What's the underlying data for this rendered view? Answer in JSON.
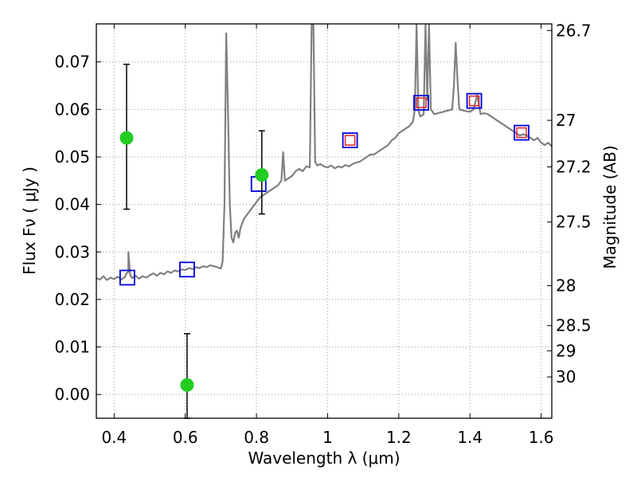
{
  "chart_data": {
    "type": "scatter",
    "xlabel": "Wavelength  λ (μm)",
    "ylabel": "Flux  Fν  ( μJy )",
    "ylabel_right": "Magnitude (AB)",
    "xlim": [
      0.35,
      1.63
    ],
    "ylim": [
      -0.005,
      0.078
    ],
    "grid": true,
    "x_ticks": [
      {
        "value": 0.4,
        "label": "0.4"
      },
      {
        "value": 0.6,
        "label": "0.6"
      },
      {
        "value": 0.8,
        "label": "0.8"
      },
      {
        "value": 1.0,
        "label": "1"
      },
      {
        "value": 1.2,
        "label": "1.2"
      },
      {
        "value": 1.4,
        "label": "1.4"
      },
      {
        "value": 1.6,
        "label": "1.6"
      }
    ],
    "y_ticks": [
      {
        "value": 0.0,
        "label": "0.00"
      },
      {
        "value": 0.01,
        "label": "0.01"
      },
      {
        "value": 0.02,
        "label": "0.02"
      },
      {
        "value": 0.03,
        "label": "0.03"
      },
      {
        "value": 0.04,
        "label": "0.04"
      },
      {
        "value": 0.05,
        "label": "0.05"
      },
      {
        "value": 0.06,
        "label": "0.06"
      },
      {
        "value": 0.07,
        "label": "0.07"
      }
    ],
    "right_ticks": [
      {
        "flux": 0.0766,
        "label": "26.7"
      },
      {
        "flux": 0.0577,
        "label": "27"
      },
      {
        "flux": 0.0479,
        "label": "27.2"
      },
      {
        "flux": 0.0363,
        "label": "27.5"
      },
      {
        "flux": 0.0229,
        "label": "28"
      },
      {
        "flux": 0.0145,
        "label": "28.5"
      },
      {
        "flux": 0.0092,
        "label": "29"
      },
      {
        "flux": 0.0037,
        "label": "30"
      }
    ],
    "colors": {
      "spectrum": "#808080",
      "detections": "#22cc22",
      "model_photometry": "#0000dd",
      "observed_boxes": "#dd2222",
      "errorbars": "#000000",
      "grid": "#999999"
    },
    "series": [
      {
        "kind": "spectrum",
        "points": [
          [
            0.35,
            0.0245
          ],
          [
            0.36,
            0.0242
          ],
          [
            0.37,
            0.0249
          ],
          [
            0.38,
            0.0241
          ],
          [
            0.39,
            0.0246
          ],
          [
            0.4,
            0.0243
          ],
          [
            0.41,
            0.0248
          ],
          [
            0.42,
            0.0242
          ],
          [
            0.43,
            0.0247
          ],
          [
            0.435,
            0.0255
          ],
          [
            0.44,
            0.0258
          ],
          [
            0.44,
            0.03
          ],
          [
            0.445,
            0.0252
          ],
          [
            0.45,
            0.0245
          ],
          [
            0.46,
            0.025
          ],
          [
            0.47,
            0.0244
          ],
          [
            0.48,
            0.0249
          ],
          [
            0.49,
            0.0246
          ],
          [
            0.5,
            0.0251
          ],
          [
            0.51,
            0.0255
          ],
          [
            0.52,
            0.025
          ],
          [
            0.53,
            0.0256
          ],
          [
            0.54,
            0.0253
          ],
          [
            0.55,
            0.0259
          ],
          [
            0.56,
            0.0256
          ],
          [
            0.57,
            0.0261
          ],
          [
            0.58,
            0.0259
          ],
          [
            0.59,
            0.0263
          ],
          [
            0.6,
            0.0262
          ],
          [
            0.61,
            0.0266
          ],
          [
            0.62,
            0.0264
          ],
          [
            0.63,
            0.0268
          ],
          [
            0.64,
            0.0266
          ],
          [
            0.65,
            0.027
          ],
          [
            0.66,
            0.0268
          ],
          [
            0.67,
            0.0272
          ],
          [
            0.68,
            0.027
          ],
          [
            0.69,
            0.0268
          ],
          [
            0.7,
            0.0265
          ],
          [
            0.705,
            0.028
          ],
          [
            0.71,
            0.04
          ],
          [
            0.715,
            0.076
          ],
          [
            0.72,
            0.06
          ],
          [
            0.725,
            0.04
          ],
          [
            0.73,
            0.033
          ],
          [
            0.735,
            0.032
          ],
          [
            0.74,
            0.034
          ],
          [
            0.745,
            0.0345
          ],
          [
            0.75,
            0.033
          ],
          [
            0.755,
            0.035
          ],
          [
            0.76,
            0.036
          ],
          [
            0.765,
            0.037
          ],
          [
            0.77,
            0.0375
          ],
          [
            0.78,
            0.0385
          ],
          [
            0.79,
            0.0395
          ],
          [
            0.8,
            0.0405
          ],
          [
            0.81,
            0.0415
          ],
          [
            0.82,
            0.042
          ],
          [
            0.83,
            0.0425
          ],
          [
            0.84,
            0.043
          ],
          [
            0.85,
            0.0435
          ],
          [
            0.86,
            0.044
          ],
          [
            0.87,
            0.045
          ],
          [
            0.875,
            0.051
          ],
          [
            0.88,
            0.045
          ],
          [
            0.89,
            0.0455
          ],
          [
            0.9,
            0.046
          ],
          [
            0.91,
            0.047
          ],
          [
            0.92,
            0.0475
          ],
          [
            0.93,
            0.047
          ],
          [
            0.94,
            0.048
          ],
          [
            0.95,
            0.0478
          ],
          [
            0.955,
            0.078
          ],
          [
            0.96,
            0.078
          ],
          [
            0.965,
            0.049
          ],
          [
            0.97,
            0.0482
          ],
          [
            0.98,
            0.0485
          ],
          [
            0.99,
            0.048
          ],
          [
            1.0,
            0.0478
          ],
          [
            1.01,
            0.0482
          ],
          [
            1.02,
            0.0476
          ],
          [
            1.03,
            0.048
          ],
          [
            1.04,
            0.0478
          ],
          [
            1.05,
            0.0483
          ],
          [
            1.06,
            0.048
          ],
          [
            1.07,
            0.0485
          ],
          [
            1.08,
            0.0488
          ],
          [
            1.09,
            0.049
          ],
          [
            1.1,
            0.0495
          ],
          [
            1.11,
            0.05
          ],
          [
            1.12,
            0.0505
          ],
          [
            1.13,
            0.0505
          ],
          [
            1.14,
            0.051
          ],
          [
            1.15,
            0.0515
          ],
          [
            1.16,
            0.052
          ],
          [
            1.17,
            0.0525
          ],
          [
            1.18,
            0.0535
          ],
          [
            1.19,
            0.054
          ],
          [
            1.2,
            0.055
          ],
          [
            1.21,
            0.0555
          ],
          [
            1.22,
            0.056
          ],
          [
            1.23,
            0.0565
          ],
          [
            1.24,
            0.0575
          ],
          [
            1.245,
            0.06
          ],
          [
            1.25,
            0.078
          ],
          [
            1.255,
            0.06
          ],
          [
            1.26,
            0.0585
          ],
          [
            1.27,
            0.059
          ],
          [
            1.275,
            0.078
          ],
          [
            1.28,
            0.062
          ],
          [
            1.285,
            0.078
          ],
          [
            1.29,
            0.06
          ],
          [
            1.3,
            0.059
          ],
          [
            1.31,
            0.0592
          ],
          [
            1.32,
            0.0594
          ],
          [
            1.33,
            0.0596
          ],
          [
            1.34,
            0.0598
          ],
          [
            1.35,
            0.06
          ],
          [
            1.355,
            0.065
          ],
          [
            1.36,
            0.074
          ],
          [
            1.365,
            0.066
          ],
          [
            1.37,
            0.06
          ],
          [
            1.38,
            0.0598
          ],
          [
            1.39,
            0.0596
          ],
          [
            1.4,
            0.0595
          ],
          [
            1.41,
            0.06
          ],
          [
            1.42,
            0.063
          ],
          [
            1.43,
            0.059
          ],
          [
            1.44,
            0.0592
          ],
          [
            1.45,
            0.059
          ],
          [
            1.46,
            0.0585
          ],
          [
            1.47,
            0.058
          ],
          [
            1.48,
            0.0575
          ],
          [
            1.49,
            0.057
          ],
          [
            1.5,
            0.0565
          ],
          [
            1.51,
            0.056
          ],
          [
            1.52,
            0.0555
          ],
          [
            1.53,
            0.055
          ],
          [
            1.54,
            0.0545
          ],
          [
            1.55,
            0.0548
          ],
          [
            1.56,
            0.0545
          ],
          [
            1.57,
            0.054
          ],
          [
            1.58,
            0.0535
          ],
          [
            1.59,
            0.054
          ],
          [
            1.6,
            0.053
          ],
          [
            1.61,
            0.0525
          ],
          [
            1.62,
            0.053
          ],
          [
            1.63,
            0.0522
          ]
        ]
      },
      {
        "kind": "model_photometry",
        "marker": "square",
        "points": [
          [
            0.437,
            0.0246
          ],
          [
            0.605,
            0.0263
          ],
          [
            0.806,
            0.0443
          ],
          [
            1.063,
            0.0535
          ],
          [
            1.263,
            0.0614
          ],
          [
            1.412,
            0.0618
          ],
          [
            1.545,
            0.0551
          ]
        ]
      },
      {
        "kind": "observed_boxes",
        "marker": "square",
        "points": [
          [
            1.063,
            0.0535
          ],
          [
            1.263,
            0.0614
          ],
          [
            1.412,
            0.0618
          ],
          [
            1.545,
            0.0551
          ]
        ]
      },
      {
        "kind": "detections",
        "marker": "circle",
        "points": [
          {
            "x": 0.435,
            "y": 0.054,
            "err_lo": 0.039,
            "err_hi": 0.0695
          },
          {
            "x": 0.605,
            "y": 0.002,
            "err_lo": -0.005,
            "err_hi": 0.0128
          },
          {
            "x": 0.815,
            "y": 0.0462,
            "err_lo": 0.038,
            "err_hi": 0.0555
          }
        ]
      }
    ]
  }
}
